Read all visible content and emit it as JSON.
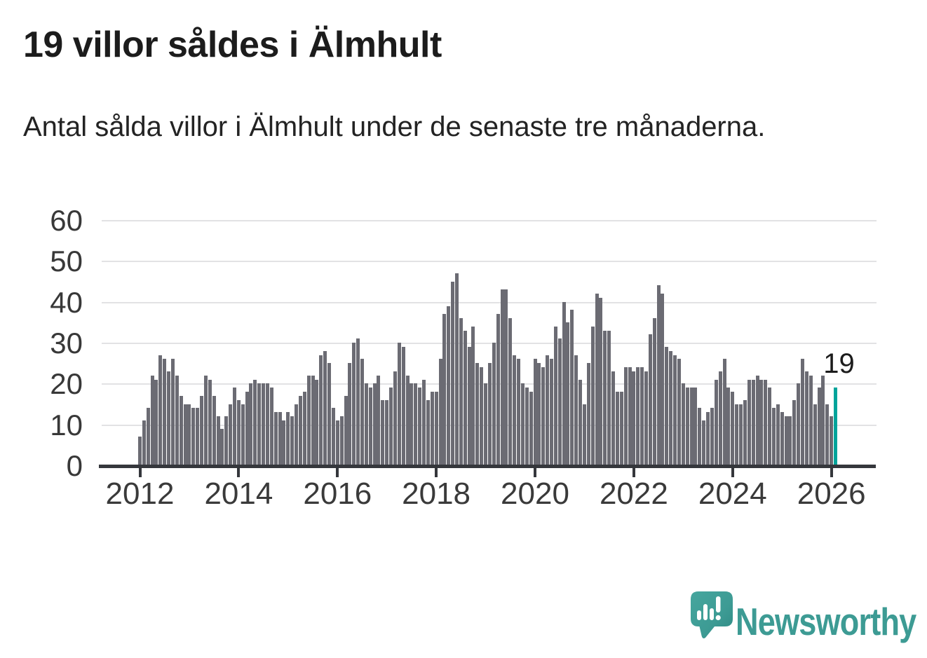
{
  "header": {
    "title": "19 villor såldes i Älmhult",
    "subtitle": "Antal sålda villor i Älmhult under de senaste tre månaderna."
  },
  "chart_data": {
    "type": "bar",
    "title": "19 villor såldes i Älmhult",
    "description": "Antal sålda villor i Älmhult under de senaste tre månaderna (rullande tremånadersvärde per månad).",
    "frequency": "monthly",
    "x_start": "2012-01",
    "x_end": "2026-02",
    "values": [
      7,
      11,
      14,
      22,
      21,
      27,
      26,
      23,
      26,
      22,
      17,
      15,
      15,
      14,
      14,
      17,
      22,
      21,
      17,
      12,
      9,
      12,
      15,
      19,
      16,
      15,
      18,
      20,
      21,
      20,
      20,
      20,
      19,
      13,
      13,
      11,
      13,
      12,
      15,
      17,
      18,
      22,
      22,
      21,
      27,
      28,
      25,
      14,
      11,
      12,
      17,
      25,
      30,
      31,
      26,
      20,
      19,
      20,
      22,
      16,
      16,
      19,
      23,
      30,
      29,
      22,
      20,
      20,
      19,
      21,
      16,
      18,
      18,
      26,
      37,
      39,
      45,
      47,
      36,
      33,
      29,
      34,
      25,
      24,
      20,
      25,
      30,
      37,
      43,
      43,
      36,
      27,
      26,
      20,
      19,
      18,
      26,
      25,
      24,
      27,
      26,
      34,
      31,
      40,
      35,
      38,
      27,
      21,
      15,
      25,
      34,
      42,
      41,
      33,
      33,
      23,
      18,
      18,
      24,
      24,
      23,
      24,
      24,
      23,
      32,
      36,
      44,
      42,
      29,
      28,
      27,
      26,
      20,
      19,
      19,
      19,
      14,
      11,
      13,
      14,
      21,
      23,
      26,
      19,
      18,
      15,
      15,
      16,
      21,
      21,
      22,
      21,
      21,
      19,
      14,
      15,
      13,
      12,
      12,
      16,
      20,
      26,
      23,
      22,
      15,
      19,
      22,
      15,
      12,
      19
    ],
    "highlight_index": 169,
    "highlight_value": 19,
    "annotation": {
      "text": "19"
    },
    "y_ticks": [
      0,
      10,
      20,
      30,
      40,
      50,
      60
    ],
    "x_tick_labels": [
      "2012",
      "2014",
      "2016",
      "2018",
      "2020",
      "2022",
      "2024",
      "2026"
    ],
    "ylim": [
      0,
      62
    ],
    "grid": "horizontal",
    "legend": "none",
    "bar_color": "#6b6b73",
    "highlight_color": "#00a49b"
  },
  "branding": {
    "wordmark": "Newsworthy",
    "logo_icon": "speech-bubble-bar-chart-icon",
    "color": "#3d9b94"
  }
}
